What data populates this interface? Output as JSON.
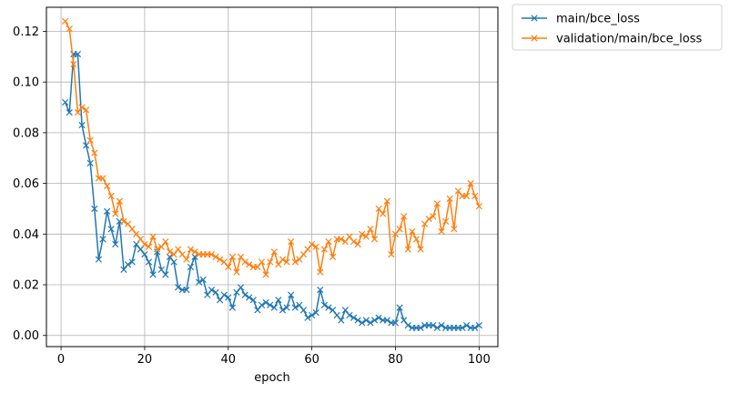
{
  "chart_data": {
    "type": "line",
    "xlabel": "epoch",
    "ylabel": "",
    "xlim": [
      -3.5,
      104.5
    ],
    "ylim": [
      -0.0044,
      0.1295
    ],
    "xticks": [
      0,
      20,
      40,
      60,
      80,
      100
    ],
    "yticks": [
      0.0,
      0.02,
      0.04,
      0.06,
      0.08,
      0.1,
      0.12
    ],
    "ytick_labels": [
      "0.00",
      "0.02",
      "0.04",
      "0.06",
      "0.08",
      "0.10",
      "0.12"
    ],
    "grid": true,
    "legend_placement": "outside-top-right",
    "marker": "x",
    "x": [
      1,
      2,
      3,
      4,
      5,
      6,
      7,
      8,
      9,
      10,
      11,
      12,
      13,
      14,
      15,
      16,
      17,
      18,
      19,
      20,
      21,
      22,
      23,
      24,
      25,
      26,
      27,
      28,
      29,
      30,
      31,
      32,
      33,
      34,
      35,
      36,
      37,
      38,
      39,
      40,
      41,
      42,
      43,
      44,
      45,
      46,
      47,
      48,
      49,
      50,
      51,
      52,
      53,
      54,
      55,
      56,
      57,
      58,
      59,
      60,
      61,
      62,
      63,
      64,
      65,
      66,
      67,
      68,
      69,
      70,
      71,
      72,
      73,
      74,
      75,
      76,
      77,
      78,
      79,
      80,
      81,
      82,
      83,
      84,
      85,
      86,
      87,
      88,
      89,
      90,
      91,
      92,
      93,
      94,
      95,
      96,
      97,
      98,
      99,
      100
    ],
    "series": [
      {
        "name": "main/bce_loss",
        "color": "#1f77b4",
        "values": [
          0.092,
          0.088,
          0.111,
          0.111,
          0.083,
          0.075,
          0.068,
          0.05,
          0.03,
          0.038,
          0.049,
          0.042,
          0.036,
          0.045,
          0.026,
          0.028,
          0.029,
          0.036,
          0.034,
          0.032,
          0.029,
          0.024,
          0.033,
          0.026,
          0.024,
          0.031,
          0.029,
          0.019,
          0.018,
          0.018,
          0.027,
          0.031,
          0.021,
          0.022,
          0.016,
          0.018,
          0.017,
          0.014,
          0.016,
          0.015,
          0.011,
          0.017,
          0.019,
          0.016,
          0.015,
          0.014,
          0.01,
          0.012,
          0.013,
          0.012,
          0.011,
          0.014,
          0.01,
          0.011,
          0.016,
          0.011,
          0.012,
          0.01,
          0.007,
          0.008,
          0.009,
          0.018,
          0.012,
          0.011,
          0.01,
          0.008,
          0.006,
          0.01,
          0.008,
          0.007,
          0.006,
          0.005,
          0.006,
          0.005,
          0.006,
          0.007,
          0.006,
          0.006,
          0.005,
          0.005,
          0.011,
          0.006,
          0.004,
          0.003,
          0.003,
          0.003,
          0.004,
          0.004,
          0.004,
          0.003,
          0.004,
          0.003,
          0.003,
          0.003,
          0.003,
          0.003,
          0.004,
          0.003,
          0.003,
          0.004
        ]
      },
      {
        "name": "validation/main/bce_loss",
        "color": "#ff7f0e",
        "values": [
          0.124,
          0.121,
          0.107,
          0.088,
          0.09,
          0.089,
          0.077,
          0.072,
          0.062,
          0.062,
          0.059,
          0.055,
          0.048,
          0.053,
          0.045,
          0.044,
          0.042,
          0.04,
          0.038,
          0.036,
          0.035,
          0.039,
          0.034,
          0.035,
          0.037,
          0.033,
          0.032,
          0.034,
          0.032,
          0.03,
          0.034,
          0.033,
          0.032,
          0.032,
          0.032,
          0.032,
          0.031,
          0.03,
          0.029,
          0.027,
          0.031,
          0.025,
          0.031,
          0.029,
          0.028,
          0.027,
          0.027,
          0.029,
          0.024,
          0.029,
          0.033,
          0.028,
          0.03,
          0.029,
          0.037,
          0.029,
          0.03,
          0.032,
          0.034,
          0.036,
          0.035,
          0.025,
          0.034,
          0.037,
          0.031,
          0.038,
          0.038,
          0.037,
          0.039,
          0.037,
          0.036,
          0.04,
          0.039,
          0.042,
          0.038,
          0.05,
          0.048,
          0.053,
          0.032,
          0.04,
          0.042,
          0.047,
          0.034,
          0.041,
          0.038,
          0.034,
          0.044,
          0.046,
          0.047,
          0.052,
          0.041,
          0.045,
          0.054,
          0.042,
          0.057,
          0.055,
          0.055,
          0.06,
          0.055,
          0.051
        ]
      }
    ]
  }
}
